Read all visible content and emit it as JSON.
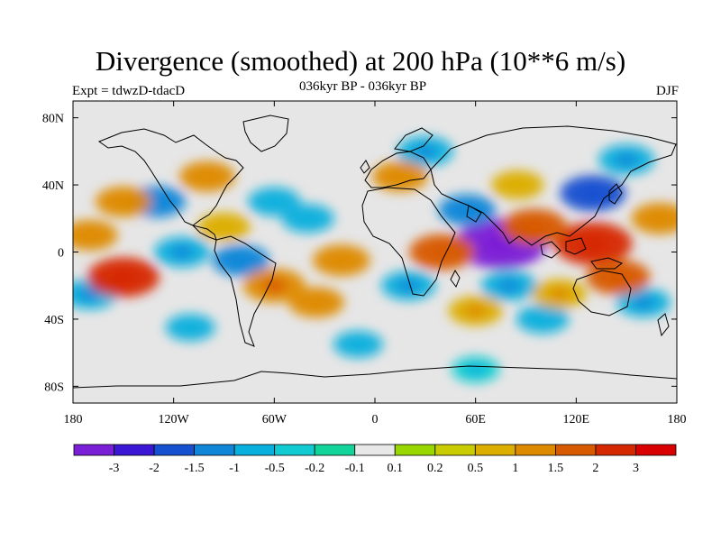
{
  "title": "Divergence (smoothed) at 200 hPa (10**6 m/s)",
  "experiment_label": "Expt = tdwzD-tdacD",
  "period_label": "036kyr BP - 036kyr BP",
  "season_label": "DJF",
  "colors": {
    "background": "#e6e6e6",
    "coast": "#000000"
  },
  "chart_data": {
    "type": "heatmap",
    "xlabel": "",
    "ylabel": "",
    "xlim": [
      -180,
      180
    ],
    "ylim": [
      -90,
      90
    ],
    "x_ticks": [
      {
        "value": -180,
        "label": "180"
      },
      {
        "value": -120,
        "label": "120W"
      },
      {
        "value": -60,
        "label": "60W"
      },
      {
        "value": 0,
        "label": "0"
      },
      {
        "value": 60,
        "label": "60E"
      },
      {
        "value": 120,
        "label": "120E"
      },
      {
        "value": 180,
        "label": "180"
      }
    ],
    "y_ticks": [
      {
        "value": 80,
        "label": "80N"
      },
      {
        "value": 40,
        "label": "40N"
      },
      {
        "value": 0,
        "label": "0"
      },
      {
        "value": -40,
        "label": "40S"
      },
      {
        "value": -80,
        "label": "80S"
      }
    ],
    "colorbar": {
      "labels": [
        "-3",
        "-2",
        "-1.5",
        "-1",
        "-0.5",
        "-0.2",
        "-0.1",
        "0.1",
        "0.2",
        "0.5",
        "1",
        "1.5",
        "2",
        "3"
      ],
      "levels": [
        -3,
        -2,
        -1.5,
        -1,
        -0.5,
        -0.2,
        -0.1,
        0.1,
        0.2,
        0.5,
        1,
        1.5,
        2,
        3
      ],
      "colors": [
        "#7b1fd6",
        "#3b16d4",
        "#1450d0",
        "#0f86d8",
        "#08b0dd",
        "#10ccd2",
        "#10d49a",
        "#e8e8e8",
        "#98d800",
        "#c8cc00",
        "#dcae00",
        "#de8a00",
        "#d85a00",
        "#d62800",
        "#d80000"
      ]
    },
    "features": [
      {
        "lon": 75,
        "lat": 5,
        "value": -3.2
      },
      {
        "lon": 130,
        "lat": 35,
        "value": -1.6
      },
      {
        "lon": 55,
        "lat": 25,
        "value": -1.1
      },
      {
        "lon": 30,
        "lat": 60,
        "value": -1.0
      },
      {
        "lon": 150,
        "lat": 55,
        "value": -1.0
      },
      {
        "lon": -130,
        "lat": 30,
        "value": -1.1
      },
      {
        "lon": -170,
        "lat": -25,
        "value": -1.0
      },
      {
        "lon": -80,
        "lat": -5,
        "value": -1.1
      },
      {
        "lon": -115,
        "lat": 0,
        "value": -1.0
      },
      {
        "lon": 20,
        "lat": -20,
        "value": -0.9
      },
      {
        "lon": 80,
        "lat": -20,
        "value": -1.0
      },
      {
        "lon": 160,
        "lat": -30,
        "value": -0.9
      },
      {
        "lon": -40,
        "lat": 20,
        "value": -0.8
      },
      {
        "lon": -60,
        "lat": 30,
        "value": -0.8
      },
      {
        "lon": 100,
        "lat": -40,
        "value": -0.8
      },
      {
        "lon": -10,
        "lat": -55,
        "value": -0.6
      },
      {
        "lon": -110,
        "lat": -45,
        "value": -0.6
      },
      {
        "lon": 60,
        "lat": -70,
        "value": -0.5
      },
      {
        "lon": 130,
        "lat": 5,
        "value": 2.4
      },
      {
        "lon": -150,
        "lat": -15,
        "value": 2.0
      },
      {
        "lon": 95,
        "lat": 15,
        "value": 1.6
      },
      {
        "lon": 40,
        "lat": 0,
        "value": 1.6
      },
      {
        "lon": -60,
        "lat": -20,
        "value": 1.4
      },
      {
        "lon": 145,
        "lat": -15,
        "value": 1.5
      },
      {
        "lon": -20,
        "lat": -5,
        "value": 1.1
      },
      {
        "lon": -150,
        "lat": 30,
        "value": 1.0
      },
      {
        "lon": -100,
        "lat": 45,
        "value": 1.0
      },
      {
        "lon": 15,
        "lat": 45,
        "value": 1.0
      },
      {
        "lon": 85,
        "lat": 40,
        "value": 0.8
      },
      {
        "lon": -170,
        "lat": 10,
        "value": 1.0
      },
      {
        "lon": 60,
        "lat": -35,
        "value": 0.9
      },
      {
        "lon": -35,
        "lat": -30,
        "value": 1.0
      },
      {
        "lon": 170,
        "lat": 20,
        "value": 1.1
      },
      {
        "lon": -90,
        "lat": 15,
        "value": 0.8
      },
      {
        "lon": 110,
        "lat": -25,
        "value": 0.9
      }
    ]
  }
}
